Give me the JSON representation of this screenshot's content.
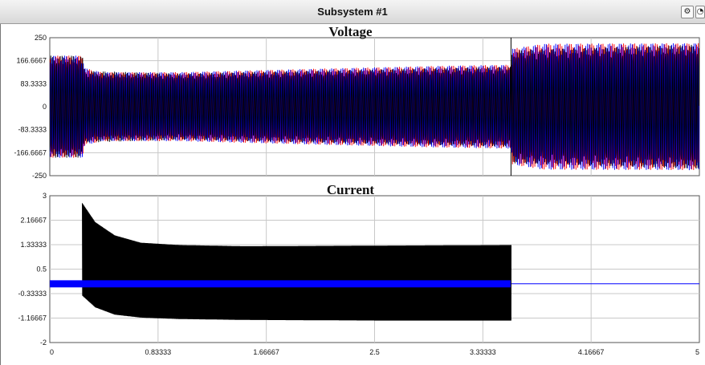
{
  "window": {
    "title": "Subsystem #1",
    "btn1_icon": "channel-settings-icon",
    "btn2_icon": "zoom-icon"
  },
  "chart_data": [
    {
      "type": "line",
      "title": "Voltage",
      "xlim": [
        0,
        5
      ],
      "ylim": [
        -250,
        250
      ],
      "x_ticks": [
        "0",
        "0.83333",
        "1.66667",
        "2.5",
        "3.33333",
        "4.16667",
        "5"
      ],
      "y_ticks": [
        "250",
        "166.6667",
        "83.3333",
        "0",
        "-83.3333",
        "-166.6667",
        "-250"
      ],
      "grid": true,
      "series": [
        {
          "color": "#ff0000",
          "envelope": [
            [
              0,
              185
            ],
            [
              0.25,
              185
            ],
            [
              0.27,
              140
            ],
            [
              0.4,
              125
            ],
            [
              1.0,
              125
            ],
            [
              2.0,
              137
            ],
            [
              3.0,
              148
            ],
            [
              3.55,
              152
            ],
            [
              3.56,
              210
            ],
            [
              3.8,
              228
            ],
            [
              5.0,
              230
            ]
          ]
        },
        {
          "color": "#0000ff",
          "envelope": [
            [
              0,
              185
            ],
            [
              0.25,
              185
            ],
            [
              0.27,
              140
            ],
            [
              0.4,
              125
            ],
            [
              1.0,
              125
            ],
            [
              2.0,
              137
            ],
            [
              3.0,
              148
            ],
            [
              3.55,
              152
            ],
            [
              3.56,
              210
            ],
            [
              3.8,
              228
            ],
            [
              5.0,
              230
            ]
          ]
        },
        {
          "color": "#000000",
          "envelope": [
            [
              0,
              185
            ],
            [
              0.25,
              185
            ],
            [
              0.27,
              130
            ],
            [
              1.0,
              120
            ],
            [
              3.55,
              145
            ],
            [
              3.56,
              205
            ],
            [
              5.0,
              225
            ]
          ]
        }
      ],
      "marker_x": 3.55
    },
    {
      "type": "line",
      "title": "Current",
      "xlim": [
        0,
        5
      ],
      "ylim": [
        -2,
        3
      ],
      "x_ticks": [
        "0",
        "0.83333",
        "1.66667",
        "2.5",
        "3.33333",
        "4.16667",
        "5"
      ],
      "y_ticks": [
        "3",
        "2.16667",
        "1.33333",
        "0.5",
        "-0.33333",
        "-1.16667",
        "-2"
      ],
      "grid": true,
      "series": [
        {
          "color": "#000000",
          "envelope": [
            [
              0.25,
              2.75
            ],
            [
              0.35,
              2.1
            ],
            [
              0.5,
              1.65
            ],
            [
              0.7,
              1.4
            ],
            [
              1.0,
              1.32
            ],
            [
              1.5,
              1.28
            ],
            [
              2.5,
              1.3
            ],
            [
              3.55,
              1.32
            ]
          ],
          "envelope_neg": [
            [
              0.25,
              -0.4
            ],
            [
              0.35,
              -0.8
            ],
            [
              0.5,
              -1.05
            ],
            [
              0.7,
              -1.15
            ],
            [
              1.0,
              -1.2
            ],
            [
              1.5,
              -1.23
            ],
            [
              2.5,
              -1.25
            ],
            [
              3.55,
              -1.25
            ]
          ],
          "pre_level": 0.0,
          "start": 0.25,
          "end": 3.55
        },
        {
          "color": "#0000ff",
          "amp": 0.12,
          "offset": 0.0,
          "end": 3.55,
          "after_level": 0.0
        }
      ]
    }
  ]
}
